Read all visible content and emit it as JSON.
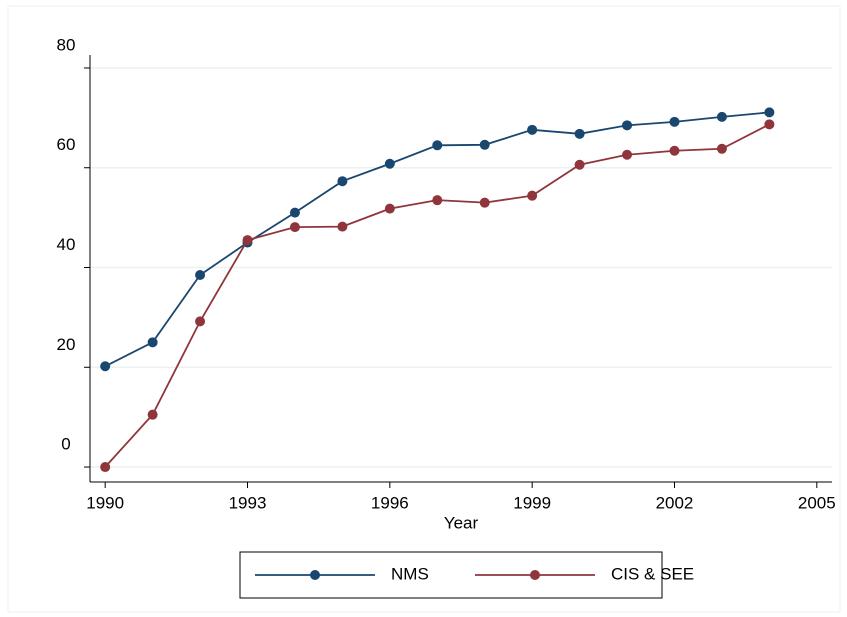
{
  "chart_data": {
    "type": "line",
    "x_label": "Year",
    "x": [
      1990,
      1991,
      1992,
      1993,
      1994,
      1995,
      1996,
      1997,
      1998,
      1999,
      2000,
      2001,
      2002,
      2003,
      2004
    ],
    "series": [
      {
        "name": "NMS",
        "color": "#1a476f",
        "values": [
          20.2,
          25,
          38.5,
          45,
          51,
          57.3,
          60.8,
          64.5,
          64.6,
          67.6,
          66.8,
          68.5,
          69.2,
          70.2,
          71.1
        ]
      },
      {
        "name": "CIS & SEE",
        "color": "#90353b",
        "values": [
          0,
          10.5,
          29.2,
          45.5,
          48.1,
          48.2,
          51.8,
          53.5,
          53,
          54.4,
          60.6,
          62.6,
          63.4,
          63.8,
          68.7
        ]
      }
    ],
    "xlim": [
      1989.68,
      2005.32
    ],
    "xticks": [
      1990,
      1993,
      1996,
      1999,
      2002,
      2005
    ],
    "ylim": [
      -3,
      82.6
    ],
    "yticks": [
      0,
      20,
      40,
      60,
      80
    ],
    "grid": true,
    "legend": "bottom"
  }
}
